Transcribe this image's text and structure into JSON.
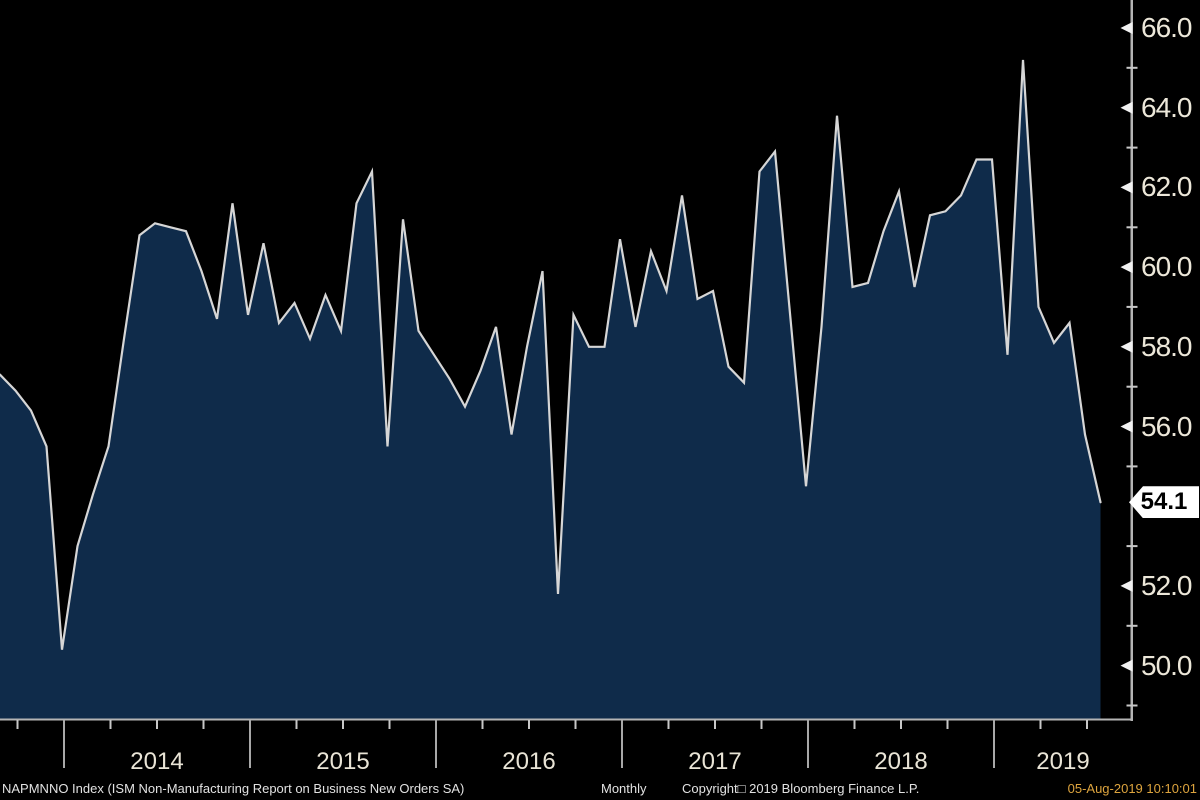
{
  "window_title": "Bloomberg chart - NAPMNNO Index",
  "footer": {
    "security": "NAPMNNO Index (ISM Non-Manufacturing Report on Business New Orders SA)",
    "frequency": "Monthly",
    "copyright": "Copyright□ 2019 Bloomberg Finance L.P.",
    "timestamp": "05-Aug-2019 10:10:01"
  },
  "colors": {
    "background": "#000000",
    "area_fill": "#0f2b4a",
    "line": "#d6d6d6",
    "axis": "#b5b5b5",
    "tick_minor": "#c8c8c8",
    "tick_label": "#ece7d9",
    "year_label": "#e9e4d6",
    "timestamp": "#dda43e",
    "badge_bg": "#ffffff",
    "badge_text": "#000000"
  },
  "chart_data": {
    "type": "area",
    "title": "NAPMNNO Index (ISM Non-Manufacturing Report on Business New Orders SA)",
    "frequency": "Monthly",
    "legend_position": "none",
    "grid": false,
    "last_value": 54.1,
    "last_value_label": "54.1",
    "y_axis": {
      "side": "right",
      "range": [
        48.6,
        66.7
      ],
      "major_ticks": [
        66.0,
        64.0,
        62.0,
        60.0,
        58.0,
        56.0,
        54.0,
        52.0,
        50.0
      ],
      "major_tick_labels": [
        "66.0",
        "64.0",
        "62.0",
        "60.0",
        "58.0",
        "56.0",
        "",
        "52.0",
        "50.0"
      ],
      "minor_ticks": [
        65,
        63,
        61,
        59,
        57,
        55,
        53,
        51,
        49
      ]
    },
    "x_axis": {
      "year_labels": [
        "2014",
        "2015",
        "2016",
        "2017",
        "2018",
        "2019"
      ],
      "start_month": "Aug 2013",
      "end_month": "Jul 2019"
    },
    "series": [
      {
        "name": "NAPMNNO Index",
        "months": [
          "Aug 2013",
          "Sep 2013",
          "Oct 2013",
          "Nov 2013",
          "Dec 2013",
          "Jan 2014",
          "Feb 2014",
          "Mar 2014",
          "Apr 2014",
          "May 2014",
          "Jun 2014",
          "Jul 2014",
          "Aug 2014",
          "Sep 2014",
          "Oct 2014",
          "Nov 2014",
          "Dec 2014",
          "Jan 2015",
          "Feb 2015",
          "Mar 2015",
          "Apr 2015",
          "May 2015",
          "Jun 2015",
          "Jul 2015",
          "Aug 2015",
          "Sep 2015",
          "Oct 2015",
          "Nov 2015",
          "Dec 2015",
          "Jan 2016",
          "Feb 2016",
          "Mar 2016",
          "Apr 2016",
          "May 2016",
          "Jun 2016",
          "Jul 2016",
          "Aug 2016",
          "Sep 2016",
          "Oct 2016",
          "Nov 2016",
          "Dec 2016",
          "Jan 2017",
          "Feb 2017",
          "Mar 2017",
          "Apr 2017",
          "May 2017",
          "Jun 2017",
          "Jul 2017",
          "Aug 2017",
          "Sep 2017",
          "Oct 2017",
          "Nov 2017",
          "Dec 2017",
          "Jan 2018",
          "Feb 2018",
          "Mar 2018",
          "Apr 2018",
          "May 2018",
          "Jun 2018",
          "Jul 2018",
          "Aug 2018",
          "Sep 2018",
          "Oct 2018",
          "Nov 2018",
          "Dec 2018",
          "Jan 2019",
          "Feb 2019",
          "Mar 2019",
          "Apr 2019",
          "May 2019",
          "Jun 2019",
          "Jul 2019"
        ],
        "values": [
          57.3,
          56.9,
          56.4,
          55.5,
          50.4,
          53.0,
          54.3,
          55.5,
          58.2,
          60.8,
          61.1,
          61.0,
          60.9,
          59.9,
          58.7,
          61.6,
          58.8,
          60.6,
          58.6,
          59.1,
          58.2,
          59.3,
          58.4,
          61.6,
          62.4,
          55.5,
          61.2,
          58.4,
          57.8,
          57.2,
          56.5,
          57.4,
          58.5,
          55.8,
          58.0,
          59.9,
          51.8,
          58.8,
          58.0,
          58.0,
          60.7,
          58.5,
          60.4,
          59.4,
          61.8,
          59.2,
          59.4,
          57.5,
          57.1,
          62.4,
          62.9,
          58.7,
          54.5,
          58.5,
          63.8,
          59.5,
          59.6,
          60.9,
          61.9,
          59.5,
          61.3,
          61.4,
          61.8,
          62.7,
          62.7,
          57.8,
          65.2,
          59.0,
          58.1,
          58.6,
          55.8,
          54.1
        ]
      }
    ]
  }
}
